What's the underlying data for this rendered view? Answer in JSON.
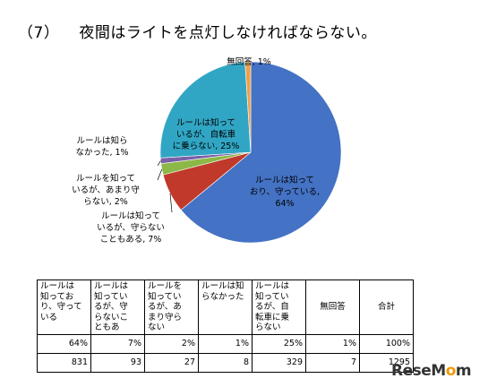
{
  "title": {
    "number": "（7）",
    "text": "夜間はライトを点灯しなければならない。"
  },
  "chart_data": {
    "type": "pie",
    "slices": [
      {
        "name": "ルールは知っており、守っている",
        "value": 64,
        "label": [
          "ルールは知って",
          "おり、守っている,",
          "64%"
        ],
        "color": "#4472c4"
      },
      {
        "name": "ルールは知っているが、守らないこともある",
        "value": 7,
        "label": [
          "ルールは知って",
          "いるが、守らない",
          "こともある, 7%"
        ],
        "color": "#c0392b"
      },
      {
        "name": "ルールを知っているが、あまり守らない",
        "value": 2,
        "label": [
          "ルールを知って",
          "いるが、あまり守",
          "らない, 2%"
        ],
        "color": "#8cb847"
      },
      {
        "name": "ルールは知らなかった",
        "value": 1,
        "label": [
          "ルールは知ら",
          "なかった, 1%"
        ],
        "color": "#7a5fa8"
      },
      {
        "name": "ルールは知っているが、自転車に乗らない",
        "value": 25,
        "label": [
          "ルールは知って",
          "いるが、自転車",
          "に乗らない, 25%"
        ],
        "color": "#31a6c4"
      },
      {
        "name": "無回答",
        "value": 1,
        "label": [
          "無回答, 1%"
        ],
        "color": "#f0a04b"
      }
    ]
  },
  "table": {
    "headers": [
      [
        "ルールは",
        "知ってお",
        "り、守って",
        "いる"
      ],
      [
        "ルールは",
        "知ってい",
        "るが、守",
        "らないこ",
        "ともあ"
      ],
      [
        "ルールを",
        "知ってい",
        "るが、あ",
        "まり守ら",
        "ない"
      ],
      [
        "ルールは知",
        "らなかった"
      ],
      [
        "ルールは",
        "知ってい",
        "るが、自",
        "転車に乗",
        "らない"
      ],
      [
        "無回答"
      ],
      [
        "合計"
      ]
    ],
    "percent_row": [
      "64%",
      "7%",
      "2%",
      "1%",
      "25%",
      "1%",
      "100%"
    ],
    "count_row": [
      "831",
      "93",
      "27",
      "8",
      "329",
      "7",
      "1295"
    ]
  },
  "logo": {
    "prefix": "Rese",
    "mark": "M",
    "o": "o",
    "suffix": "m"
  }
}
